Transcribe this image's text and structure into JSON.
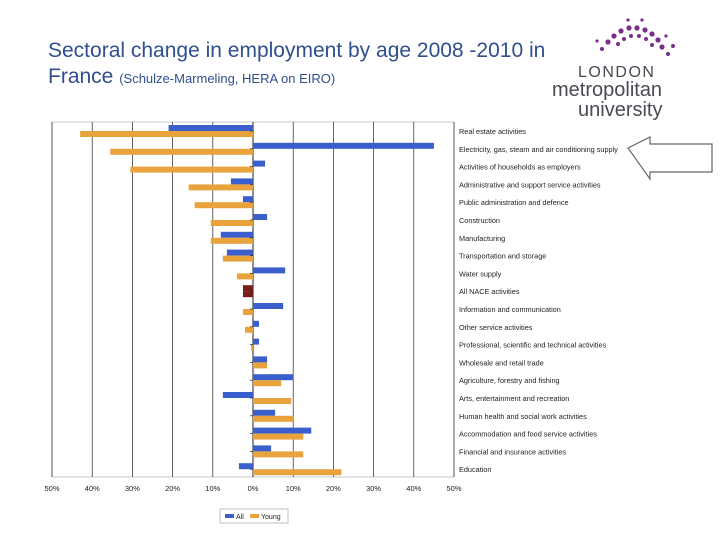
{
  "slide": {
    "title_main": "Sectoral change in employment by age 2008 -2010 in France",
    "title_source": "(Schulze-Marmeling, HERA on EIRO)"
  },
  "logo": {
    "line1": "LONDON",
    "line2": "metropolitan",
    "line3": "university",
    "dot_color": "#7b2d8b"
  },
  "colors": {
    "all": "#3a5fcd",
    "young": "#e8a33d",
    "all_nace": "#7a1c1c",
    "text": "#2f4f8f"
  },
  "chart_data": {
    "type": "bar",
    "orientation": "horizontal",
    "categories": [
      "Real estate activities",
      "Electricity, gas, steam and air conditioning supply",
      "Activities of households as employers",
      "Administrative and support service activities",
      "Public administration and defence",
      "Construction",
      "Manufacturing",
      "Transportation and storage",
      "Water supply",
      "All NACE activities",
      "Information and communication",
      "Other service activities",
      "Professional, scientific and technical activities",
      "Wholesale and retail trade",
      "Agriculture, forestry and fishing",
      "Arts, entertainment and recreation",
      "Human health and social work activities",
      "Accommodation and food service activities",
      "Financial and insurance activities",
      "Education"
    ],
    "series": [
      {
        "name": "All",
        "values": [
          -21,
          45,
          3,
          -5.5,
          -2.5,
          3.5,
          -8,
          -6.5,
          8,
          -2.5,
          7.5,
          1.5,
          1.5,
          3.5,
          10,
          -7.5,
          5.5,
          14.5,
          4.5,
          -3.5
        ]
      },
      {
        "name": "Young",
        "values": [
          -43,
          -35.5,
          -30.5,
          -16,
          -14.5,
          -10.5,
          -10.5,
          -7.5,
          -4,
          -2.5,
          -2.5,
          -2,
          -0.5,
          3.5,
          7,
          9.5,
          10,
          12.5,
          12.5,
          22
        ]
      }
    ],
    "highlight_category": "All NACE activities",
    "xlim": [
      -50,
      50
    ],
    "xticks": [
      "50%",
      "40%",
      "30%",
      "20%",
      "10%",
      "0%",
      "10%",
      "20%",
      "30%",
      "40%",
      "50%"
    ],
    "tick_values": [
      -50,
      -40,
      -30,
      -20,
      -10,
      0,
      10,
      20,
      30,
      40,
      50
    ],
    "legend": [
      "All",
      "Young"
    ],
    "legend_position": "bottom-center",
    "gridlines": true
  }
}
